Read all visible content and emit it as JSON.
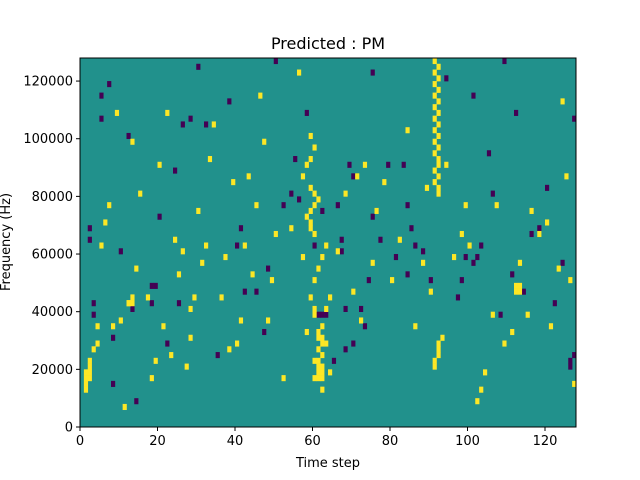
{
  "chart_data": {
    "type": "heatmap",
    "title": "Predicted : PM",
    "xlabel": "Time step",
    "ylabel": "Frequency (Hz)",
    "xlim": [
      0,
      128
    ],
    "ylim": [
      0,
      128000
    ],
    "x_ticks": [
      0,
      20,
      40,
      60,
      80,
      100,
      120
    ],
    "y_ticks": [
      0,
      20000,
      40000,
      60000,
      80000,
      100000,
      120000
    ],
    "x_tick_labels": [
      "0",
      "20",
      "40",
      "60",
      "80",
      "100",
      "120"
    ],
    "y_tick_labels": [
      "0",
      "20000",
      "40000",
      "60000",
      "80000",
      "100000",
      "120000"
    ],
    "n_time_steps": 128,
    "n_freq_bins": 64,
    "freq_bin_width_hz": 2000,
    "background_level": 0.5,
    "colormap": [
      "#440154",
      "#21918c",
      "#fde725"
    ],
    "cells_low": [
      [
        2,
        34
      ],
      [
        2,
        32
      ],
      [
        3,
        19
      ],
      [
        3,
        21
      ],
      [
        5,
        53
      ],
      [
        5,
        57
      ],
      [
        7,
        59
      ],
      [
        8,
        7
      ],
      [
        8,
        15
      ],
      [
        10,
        30
      ],
      [
        12,
        50
      ],
      [
        13,
        20
      ],
      [
        14,
        4
      ],
      [
        18,
        21
      ],
      [
        18,
        24
      ],
      [
        19,
        24
      ],
      [
        20,
        36
      ],
      [
        22,
        14
      ],
      [
        24,
        44
      ],
      [
        25,
        21
      ],
      [
        26,
        52
      ],
      [
        28,
        53
      ],
      [
        30,
        62
      ],
      [
        32,
        52
      ],
      [
        35,
        12
      ],
      [
        38,
        56
      ],
      [
        40,
        31
      ],
      [
        41,
        34
      ],
      [
        42,
        23
      ],
      [
        45,
        23
      ],
      [
        47,
        16
      ],
      [
        48,
        27
      ],
      [
        50,
        63
      ],
      [
        52,
        38
      ],
      [
        54,
        40
      ],
      [
        55,
        46
      ],
      [
        56,
        39
      ],
      [
        58,
        54
      ],
      [
        60,
        31
      ],
      [
        62,
        37
      ],
      [
        65,
        11
      ],
      [
        66,
        38
      ],
      [
        67,
        32
      ],
      [
        67,
        30
      ],
      [
        68,
        20
      ],
      [
        68,
        13
      ],
      [
        69,
        45
      ],
      [
        70,
        43
      ],
      [
        70,
        14
      ],
      [
        72,
        20
      ],
      [
        73,
        17
      ],
      [
        74,
        25
      ],
      [
        75,
        36
      ],
      [
        75,
        61
      ],
      [
        77,
        32
      ],
      [
        79,
        45
      ],
      [
        81,
        29
      ],
      [
        83,
        45
      ],
      [
        84,
        38
      ],
      [
        84,
        26
      ],
      [
        85,
        34
      ],
      [
        86,
        31
      ],
      [
        88,
        30
      ],
      [
        90,
        25
      ],
      [
        92,
        46
      ],
      [
        94,
        60
      ],
      [
        97,
        22
      ],
      [
        98,
        25
      ],
      [
        99,
        29
      ],
      [
        101,
        57
      ],
      [
        101,
        28
      ],
      [
        102,
        29
      ],
      [
        103,
        31
      ],
      [
        105,
        47
      ],
      [
        106,
        40
      ],
      [
        108,
        19
      ],
      [
        109,
        63
      ],
      [
        111,
        26
      ],
      [
        112,
        54
      ],
      [
        114,
        23
      ],
      [
        116,
        33
      ],
      [
        118,
        34
      ],
      [
        120,
        41
      ],
      [
        122,
        21
      ],
      [
        124,
        28
      ],
      [
        126,
        11
      ],
      [
        127,
        53
      ],
      [
        126,
        10
      ],
      [
        127,
        12
      ],
      [
        61,
        19
      ],
      [
        62,
        19
      ],
      [
        63,
        19
      ]
    ],
    "cells_high": [
      [
        1,
        6
      ],
      [
        1,
        7
      ],
      [
        1,
        8
      ],
      [
        1,
        9
      ],
      [
        2,
        8
      ],
      [
        2,
        9
      ],
      [
        2,
        10
      ],
      [
        2,
        11
      ],
      [
        3,
        13
      ],
      [
        4,
        14
      ],
      [
        4,
        17
      ],
      [
        5,
        31
      ],
      [
        6,
        35
      ],
      [
        7,
        38
      ],
      [
        8,
        17
      ],
      [
        9,
        54
      ],
      [
        10,
        18
      ],
      [
        11,
        3
      ],
      [
        12,
        21
      ],
      [
        13,
        49
      ],
      [
        14,
        27
      ],
      [
        15,
        40
      ],
      [
        17,
        22
      ],
      [
        18,
        8
      ],
      [
        19,
        11
      ],
      [
        20,
        45
      ],
      [
        21,
        17
      ],
      [
        22,
        54
      ],
      [
        23,
        12
      ],
      [
        24,
        32
      ],
      [
        25,
        26
      ],
      [
        26,
        30
      ],
      [
        27,
        10
      ],
      [
        28,
        15
      ],
      [
        28,
        20
      ],
      [
        29,
        22
      ],
      [
        30,
        37
      ],
      [
        31,
        28
      ],
      [
        32,
        31
      ],
      [
        33,
        46
      ],
      [
        34,
        52
      ],
      [
        36,
        22
      ],
      [
        37,
        29
      ],
      [
        38,
        13
      ],
      [
        39,
        42
      ],
      [
        40,
        14
      ],
      [
        41,
        18
      ],
      [
        42,
        31
      ],
      [
        43,
        43
      ],
      [
        44,
        26
      ],
      [
        45,
        38
      ],
      [
        46,
        57
      ],
      [
        47,
        49
      ],
      [
        48,
        18
      ],
      [
        49,
        25
      ],
      [
        50,
        33
      ],
      [
        52,
        8
      ],
      [
        54,
        34
      ],
      [
        56,
        61
      ],
      [
        57,
        29
      ],
      [
        58,
        16
      ],
      [
        59,
        22
      ],
      [
        60,
        19
      ],
      [
        60,
        20
      ],
      [
        61,
        15
      ],
      [
        62,
        6
      ],
      [
        63,
        14
      ],
      [
        64,
        9
      ],
      [
        66,
        30
      ],
      [
        68,
        40
      ],
      [
        70,
        23
      ],
      [
        71,
        43
      ],
      [
        72,
        18
      ],
      [
        73,
        45
      ],
      [
        75,
        28
      ],
      [
        76,
        37
      ],
      [
        78,
        42
      ],
      [
        80,
        25
      ],
      [
        82,
        32
      ],
      [
        84,
        51
      ],
      [
        86,
        17
      ],
      [
        88,
        28
      ],
      [
        89,
        41
      ],
      [
        90,
        23
      ],
      [
        91,
        10
      ],
      [
        91,
        11
      ],
      [
        92,
        12
      ],
      [
        92,
        13
      ],
      [
        92,
        14
      ],
      [
        93,
        15
      ],
      [
        94,
        45
      ],
      [
        96,
        29
      ],
      [
        98,
        33
      ],
      [
        99,
        38
      ],
      [
        100,
        31
      ],
      [
        102,
        4
      ],
      [
        103,
        6
      ],
      [
        104,
        9
      ],
      [
        106,
        19
      ],
      [
        107,
        38
      ],
      [
        109,
        14
      ],
      [
        111,
        16
      ],
      [
        113,
        28
      ],
      [
        115,
        19
      ],
      [
        116,
        37
      ],
      [
        118,
        33
      ],
      [
        120,
        35
      ],
      [
        121,
        17
      ],
      [
        123,
        27
      ],
      [
        124,
        56
      ],
      [
        125,
        43
      ],
      [
        126,
        25
      ],
      [
        127,
        7
      ],
      [
        60,
        8
      ],
      [
        61,
        8
      ],
      [
        62,
        8
      ],
      [
        61,
        9
      ],
      [
        62,
        9
      ],
      [
        61,
        10
      ],
      [
        62,
        10
      ],
      [
        60,
        11
      ],
      [
        61,
        11
      ],
      [
        62,
        12
      ],
      [
        61,
        13
      ],
      [
        62,
        14
      ],
      [
        62,
        15
      ],
      [
        61,
        16
      ],
      [
        62,
        17
      ],
      [
        63,
        20
      ],
      [
        64,
        22
      ],
      [
        60,
        25
      ],
      [
        61,
        27
      ],
      [
        62,
        29
      ],
      [
        63,
        31
      ],
      [
        60,
        33
      ],
      [
        59,
        34
      ],
      [
        59,
        35
      ],
      [
        58,
        36
      ],
      [
        59,
        37
      ],
      [
        60,
        38
      ],
      [
        61,
        39
      ],
      [
        60,
        40
      ],
      [
        59,
        41
      ],
      [
        57,
        43
      ],
      [
        58,
        45
      ],
      [
        59,
        46
      ],
      [
        60,
        48
      ],
      [
        59,
        50
      ],
      [
        92,
        40
      ],
      [
        92,
        41
      ],
      [
        91,
        42
      ],
      [
        92,
        43
      ],
      [
        91,
        44
      ],
      [
        92,
        45
      ],
      [
        92,
        46
      ],
      [
        91,
        47
      ],
      [
        92,
        48
      ],
      [
        91,
        49
      ],
      [
        92,
        50
      ],
      [
        91,
        51
      ],
      [
        92,
        52
      ],
      [
        91,
        53
      ],
      [
        92,
        54
      ],
      [
        91,
        55
      ],
      [
        92,
        56
      ],
      [
        91,
        57
      ],
      [
        92,
        58
      ],
      [
        91,
        59
      ],
      [
        92,
        60
      ],
      [
        91,
        61
      ],
      [
        92,
        62
      ],
      [
        91,
        63
      ],
      [
        112,
        23
      ],
      [
        113,
        23
      ],
      [
        112,
        24
      ],
      [
        113,
        24
      ],
      [
        12,
        21
      ],
      [
        13,
        21
      ],
      [
        13,
        22
      ]
    ]
  }
}
